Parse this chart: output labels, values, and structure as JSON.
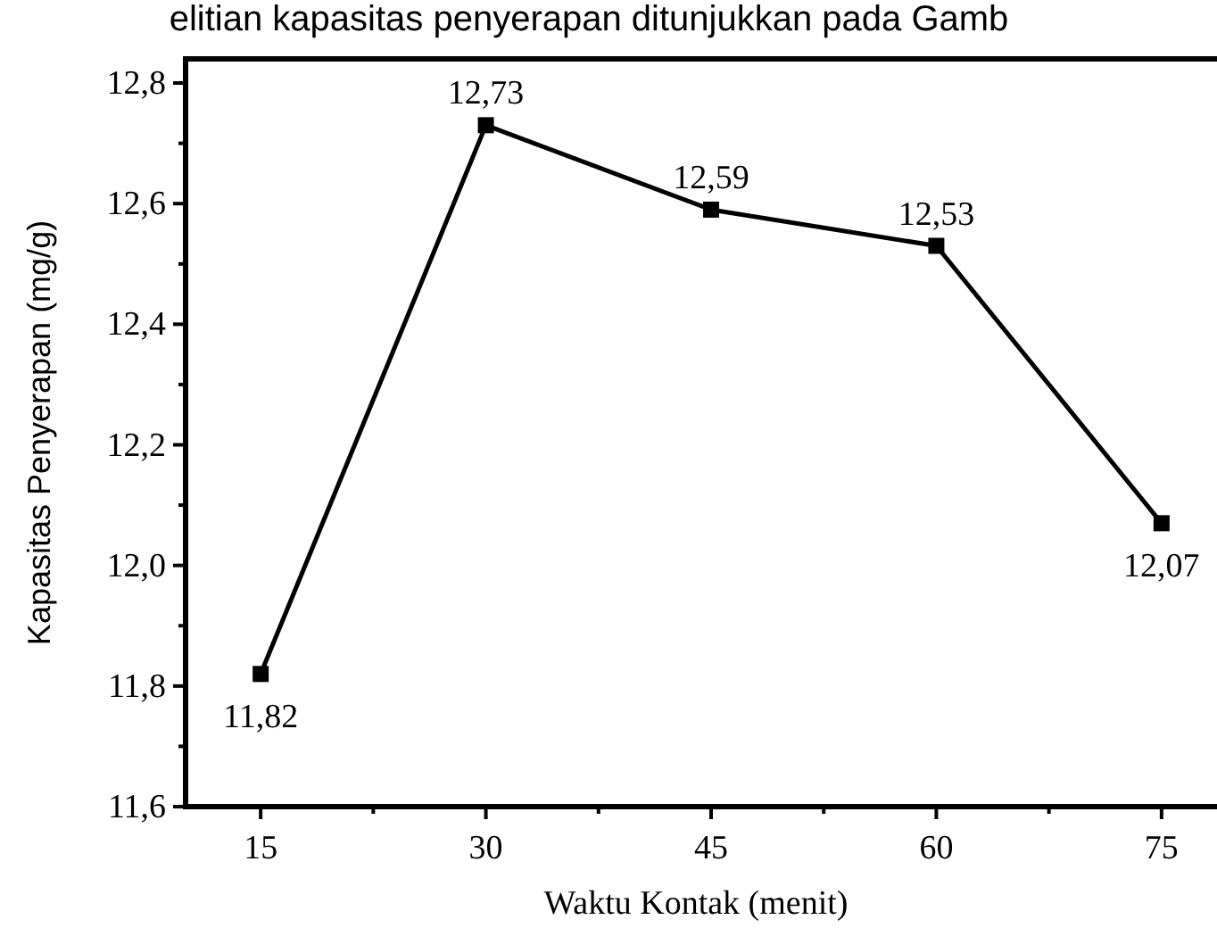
{
  "chart_data": {
    "type": "line",
    "xlabel": "Waktu Kontak (menit)",
    "ylabel": "Kapasitas Penyerapan (mg/g)",
    "annotations": [
      "elitian kapasitas penyerapan ditunjukkan pada Gamb"
    ],
    "x": [
      15,
      30,
      45,
      60,
      75
    ],
    "series": [
      {
        "color": "#000000",
        "values": [
          11.82,
          12.73,
          12.59,
          12.53,
          12.07
        ],
        "value_labels": [
          "11,82",
          "12,73",
          "12,59",
          "12,53",
          "12,07"
        ]
      }
    ],
    "xlim": [
      10,
      80
    ],
    "xticks": [
      15,
      30,
      45,
      60,
      75
    ],
    "ylim": [
      11.6,
      12.84
    ],
    "yticks": [
      {
        "value": 11.6,
        "label": "11,6"
      },
      {
        "value": 11.8,
        "label": "11,8"
      },
      {
        "value": 12.0,
        "label": "12,0"
      },
      {
        "value": 12.2,
        "label": "12,2"
      },
      {
        "value": 12.4,
        "label": "12,4"
      },
      {
        "value": 12.6,
        "label": "12,6"
      },
      {
        "value": 12.8,
        "label": "12,8"
      }
    ],
    "marker": "square",
    "line_style": "solid"
  }
}
